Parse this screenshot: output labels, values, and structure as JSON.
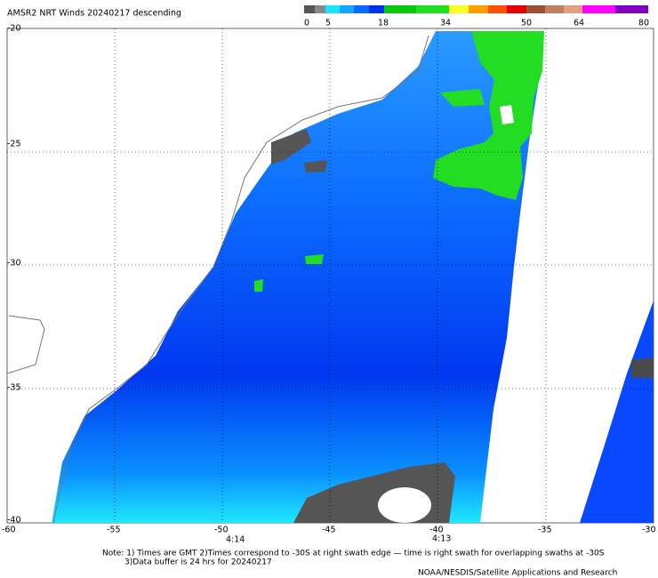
{
  "header": {
    "title": "AMSR2 NRT Winds  20240217 descending"
  },
  "colorbar": {
    "labels": [
      0,
      5,
      18,
      34,
      50,
      64,
      80
    ]
  },
  "map": {
    "lat_labels": [
      -20,
      -25,
      -30,
      -35,
      -40
    ],
    "lon_labels": [
      -60,
      -55,
      -50,
      -45,
      -40,
      -35,
      -30
    ],
    "times": [
      "4:14",
      "4:13"
    ]
  },
  "notes": [
    "Note: 1) Times are GMT 2)Times correspond to -30S at right swath edge — time is right swath for overlapping swaths at -30S",
    "3)Data buffer is 24 hrs for 20240217"
  ],
  "credit": "NOAA/NESDIS/Satellite Applications and Research"
}
